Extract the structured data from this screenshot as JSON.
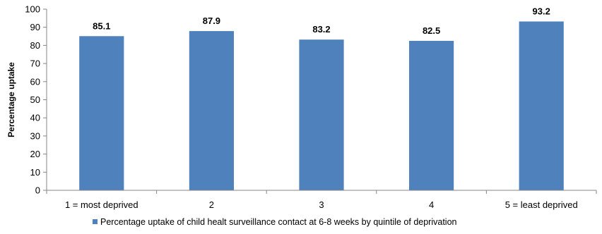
{
  "chart_data": {
    "type": "bar",
    "categories": [
      "1 = most deprived",
      "2",
      "3",
      "4",
      "5 = least deprived"
    ],
    "series": [
      {
        "name": "Percentage uptake of child healt surveillance contact at 6-8 weeks by quintile of deprivation",
        "values": [
          85.1,
          87.9,
          83.2,
          82.5,
          93.2
        ],
        "value_labels": [
          "85.1",
          "87.9",
          "83.2",
          "82.5",
          "93.2"
        ],
        "color": "#4F81BD"
      }
    ],
    "title": "",
    "xlabel": "",
    "ylabel": "Percentage uptake",
    "ylim": [
      0,
      100
    ],
    "yticks": [
      0,
      10,
      20,
      30,
      40,
      50,
      60,
      70,
      80,
      90,
      100
    ],
    "grid": false,
    "legend_position": "bottom"
  }
}
